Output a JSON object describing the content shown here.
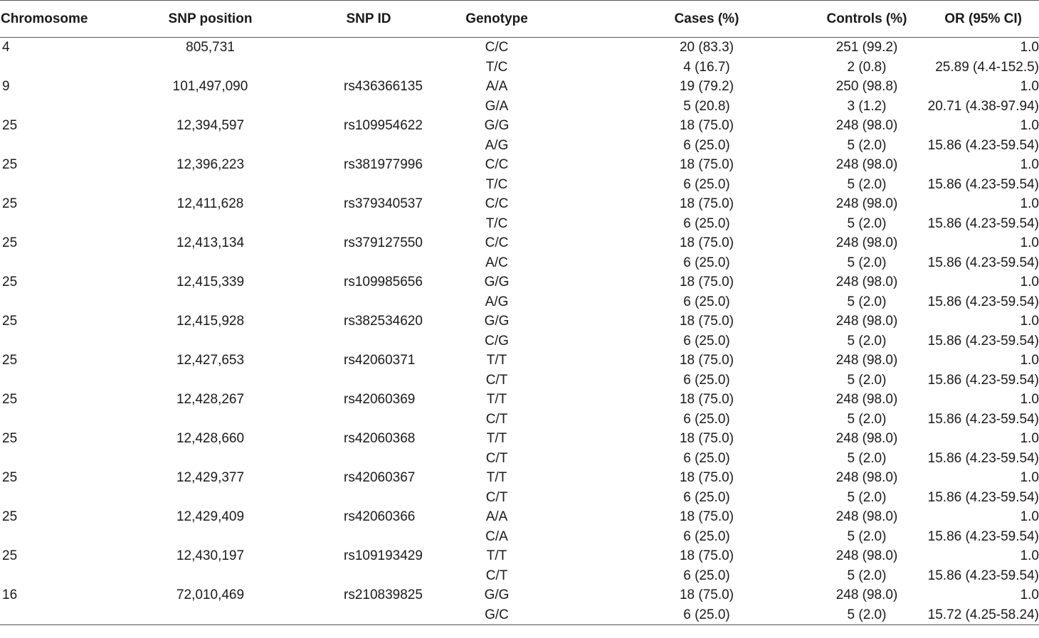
{
  "table": {
    "headers": {
      "chromosome": "Chromosome",
      "snp_position": "SNP position",
      "snp_id": "SNP ID",
      "genotype": "Genotype",
      "cases": "Cases (%)",
      "controls": "Controls (%)",
      "or": "OR (95% CI)"
    },
    "rows": [
      {
        "chromosome": "4",
        "position": "805,731",
        "snp_id": "",
        "genotype": "C/C",
        "cases": "20 (83.3)",
        "controls": "251 (99.2)",
        "or": "1.0"
      },
      {
        "chromosome": "",
        "position": "",
        "snp_id": "",
        "genotype": "T/C",
        "cases": "4 (16.7)",
        "controls": "2 (0.8)",
        "or": "25.89 (4.4-152.5)"
      },
      {
        "chromosome": "9",
        "position": "101,497,090",
        "snp_id": "rs436366135",
        "genotype": "A/A",
        "cases": "19 (79.2)",
        "controls": "250 (98.8)",
        "or": "1.0"
      },
      {
        "chromosome": "",
        "position": "",
        "snp_id": "",
        "genotype": "G/A",
        "cases": "5 (20.8)",
        "controls": "3 (1.2)",
        "or": "20.71 (4.38-97.94)"
      },
      {
        "chromosome": "25",
        "position": "12,394,597",
        "snp_id": "rs109954622",
        "genotype": "G/G",
        "cases": "18 (75.0)",
        "controls": "248 (98.0)",
        "or": "1.0"
      },
      {
        "chromosome": "",
        "position": "",
        "snp_id": "",
        "genotype": "A/G",
        "cases": "6 (25.0)",
        "controls": "5 (2.0)",
        "or": "15.86 (4.23-59.54)"
      },
      {
        "chromosome": "25",
        "position": "12,396,223",
        "snp_id": "rs381977996",
        "genotype": "C/C",
        "cases": "18 (75.0)",
        "controls": "248 (98.0)",
        "or": "1.0"
      },
      {
        "chromosome": "",
        "position": "",
        "snp_id": "",
        "genotype": "T/C",
        "cases": "6 (25.0)",
        "controls": "5 (2.0)",
        "or": "15.86 (4.23-59.54)"
      },
      {
        "chromosome": "25",
        "position": "12,411,628",
        "snp_id": "rs379340537",
        "genotype": "C/C",
        "cases": "18 (75.0)",
        "controls": "248 (98.0)",
        "or": "1.0"
      },
      {
        "chromosome": "",
        "position": "",
        "snp_id": "",
        "genotype": "T/C",
        "cases": "6 (25.0)",
        "controls": "5 (2.0)",
        "or": "15.86 (4.23-59.54)"
      },
      {
        "chromosome": "25",
        "position": "12,413,134",
        "snp_id": "rs379127550",
        "genotype": "C/C",
        "cases": "18 (75.0)",
        "controls": "248 (98.0)",
        "or": "1.0"
      },
      {
        "chromosome": "",
        "position": "",
        "snp_id": "",
        "genotype": "A/C",
        "cases": "6 (25.0)",
        "controls": "5 (2.0)",
        "or": "15.86 (4.23-59.54)"
      },
      {
        "chromosome": "25",
        "position": "12,415,339",
        "snp_id": "rs109985656",
        "genotype": "G/G",
        "cases": "18 (75.0)",
        "controls": "248 (98.0)",
        "or": "1.0"
      },
      {
        "chromosome": "",
        "position": "",
        "snp_id": "",
        "genotype": "A/G",
        "cases": "6 (25.0)",
        "controls": "5 (2.0)",
        "or": "15.86 (4.23-59.54)"
      },
      {
        "chromosome": "25",
        "position": "12,415,928",
        "snp_id": "rs382534620",
        "genotype": "G/G",
        "cases": "18 (75.0)",
        "controls": "248 (98.0)",
        "or": "1.0"
      },
      {
        "chromosome": "",
        "position": "",
        "snp_id": "",
        "genotype": "C/G",
        "cases": "6 (25.0)",
        "controls": "5 (2.0)",
        "or": "15.86 (4.23-59.54)"
      },
      {
        "chromosome": "25",
        "position": "12,427,653",
        "snp_id": "rs42060371",
        "genotype": "T/T",
        "cases": "18 (75.0)",
        "controls": "248 (98.0)",
        "or": "1.0"
      },
      {
        "chromosome": "",
        "position": "",
        "snp_id": "",
        "genotype": "C/T",
        "cases": "6 (25.0)",
        "controls": "5 (2.0)",
        "or": "15.86 (4.23-59.54)"
      },
      {
        "chromosome": "25",
        "position": "12,428,267",
        "snp_id": "rs42060369",
        "genotype": "T/T",
        "cases": "18 (75.0)",
        "controls": "248 (98.0)",
        "or": "1.0"
      },
      {
        "chromosome": "",
        "position": "",
        "snp_id": "",
        "genotype": "C/T",
        "cases": "6 (25.0)",
        "controls": "5 (2.0)",
        "or": "15.86 (4.23-59.54)"
      },
      {
        "chromosome": "25",
        "position": "12,428,660",
        "snp_id": "rs42060368",
        "genotype": "T/T",
        "cases": "18 (75.0)",
        "controls": "248 (98.0)",
        "or": "1.0"
      },
      {
        "chromosome": "",
        "position": "",
        "snp_id": "",
        "genotype": "C/T",
        "cases": "6 (25.0)",
        "controls": "5 (2.0)",
        "or": "15.86 (4.23-59.54)"
      },
      {
        "chromosome": "25",
        "position": "12,429,377",
        "snp_id": "rs42060367",
        "genotype": "T/T",
        "cases": "18 (75.0)",
        "controls": "248 (98.0)",
        "or": "1.0"
      },
      {
        "chromosome": "",
        "position": "",
        "snp_id": "",
        "genotype": "C/T",
        "cases": "6 (25.0)",
        "controls": "5 (2.0)",
        "or": "15.86 (4.23-59.54)"
      },
      {
        "chromosome": "25",
        "position": "12,429,409",
        "snp_id": "rs42060366",
        "genotype": "A/A",
        "cases": "18 (75.0)",
        "controls": "248 (98.0)",
        "or": "1.0"
      },
      {
        "chromosome": "",
        "position": "",
        "snp_id": "",
        "genotype": "C/A",
        "cases": "6 (25.0)",
        "controls": "5 (2.0)",
        "or": "15.86 (4.23-59.54)"
      },
      {
        "chromosome": "25",
        "position": "12,430,197",
        "snp_id": "rs109193429",
        "genotype": "T/T",
        "cases": "18 (75.0)",
        "controls": "248 (98.0)",
        "or": "1.0"
      },
      {
        "chromosome": "",
        "position": "",
        "snp_id": "",
        "genotype": "C/T",
        "cases": "6 (25.0)",
        "controls": "5 (2.0)",
        "or": "15.86 (4.23-59.54)"
      },
      {
        "chromosome": "16",
        "position": "72,010,469",
        "snp_id": "rs210839825",
        "genotype": "G/G",
        "cases": "18 (75.0)",
        "controls": "248 (98.0)",
        "or": "1.0"
      },
      {
        "chromosome": "",
        "position": "",
        "snp_id": "",
        "genotype": "G/C",
        "cases": "6 (25.0)",
        "controls": "5 (2.0)",
        "or": "15.72 (4.25-58.24)"
      }
    ]
  }
}
